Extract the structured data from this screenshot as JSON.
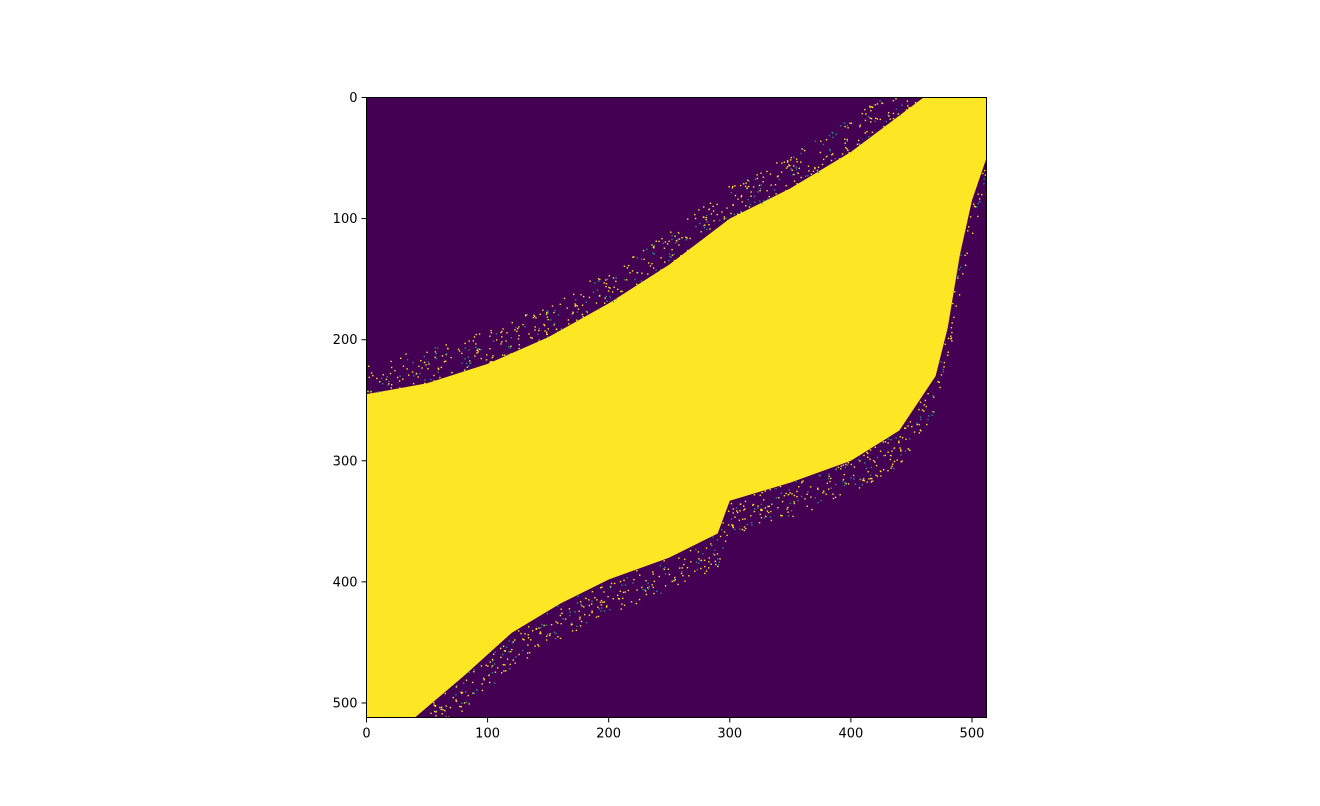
{
  "chart_data": {
    "type": "heatmap",
    "title": "",
    "xlabel": "",
    "ylabel": "",
    "image_shape": [
      512,
      512
    ],
    "xlim": [
      0,
      512
    ],
    "ylim": [
      512,
      0
    ],
    "x_ticks": [
      0,
      100,
      200,
      300,
      400,
      500
    ],
    "y_ticks": [
      0,
      100,
      200,
      300,
      400,
      500
    ],
    "x_tick_labels": [
      "0",
      "100",
      "200",
      "300",
      "400",
      "500"
    ],
    "y_tick_labels": [
      "0",
      "100",
      "200",
      "300",
      "400",
      "500"
    ],
    "colormap": "viridis",
    "binary_values": [
      0,
      1
    ],
    "colors": {
      "low": "#440154",
      "high": "#fde725",
      "mid": "#21918c"
    },
    "region_value_1": {
      "description": "yellow band running from lower-left to upper-right",
      "upper_edge": [
        [
          0,
          245
        ],
        [
          50,
          236
        ],
        [
          100,
          220
        ],
        [
          150,
          198
        ],
        [
          200,
          170
        ],
        [
          250,
          138
        ],
        [
          300,
          100
        ],
        [
          350,
          75
        ],
        [
          400,
          45
        ],
        [
          440,
          15
        ],
        [
          460,
          0
        ],
        [
          512,
          0
        ]
      ],
      "lower_edge": [
        [
          40,
          512
        ],
        [
          80,
          478
        ],
        [
          120,
          442
        ],
        [
          160,
          418
        ],
        [
          200,
          398
        ],
        [
          250,
          380
        ],
        [
          290,
          360
        ],
        [
          300,
          333
        ],
        [
          350,
          318
        ],
        [
          400,
          300
        ],
        [
          440,
          275
        ],
        [
          470,
          230
        ],
        [
          480,
          190
        ],
        [
          490,
          130
        ],
        [
          500,
          85
        ],
        [
          512,
          50
        ]
      ]
    }
  }
}
